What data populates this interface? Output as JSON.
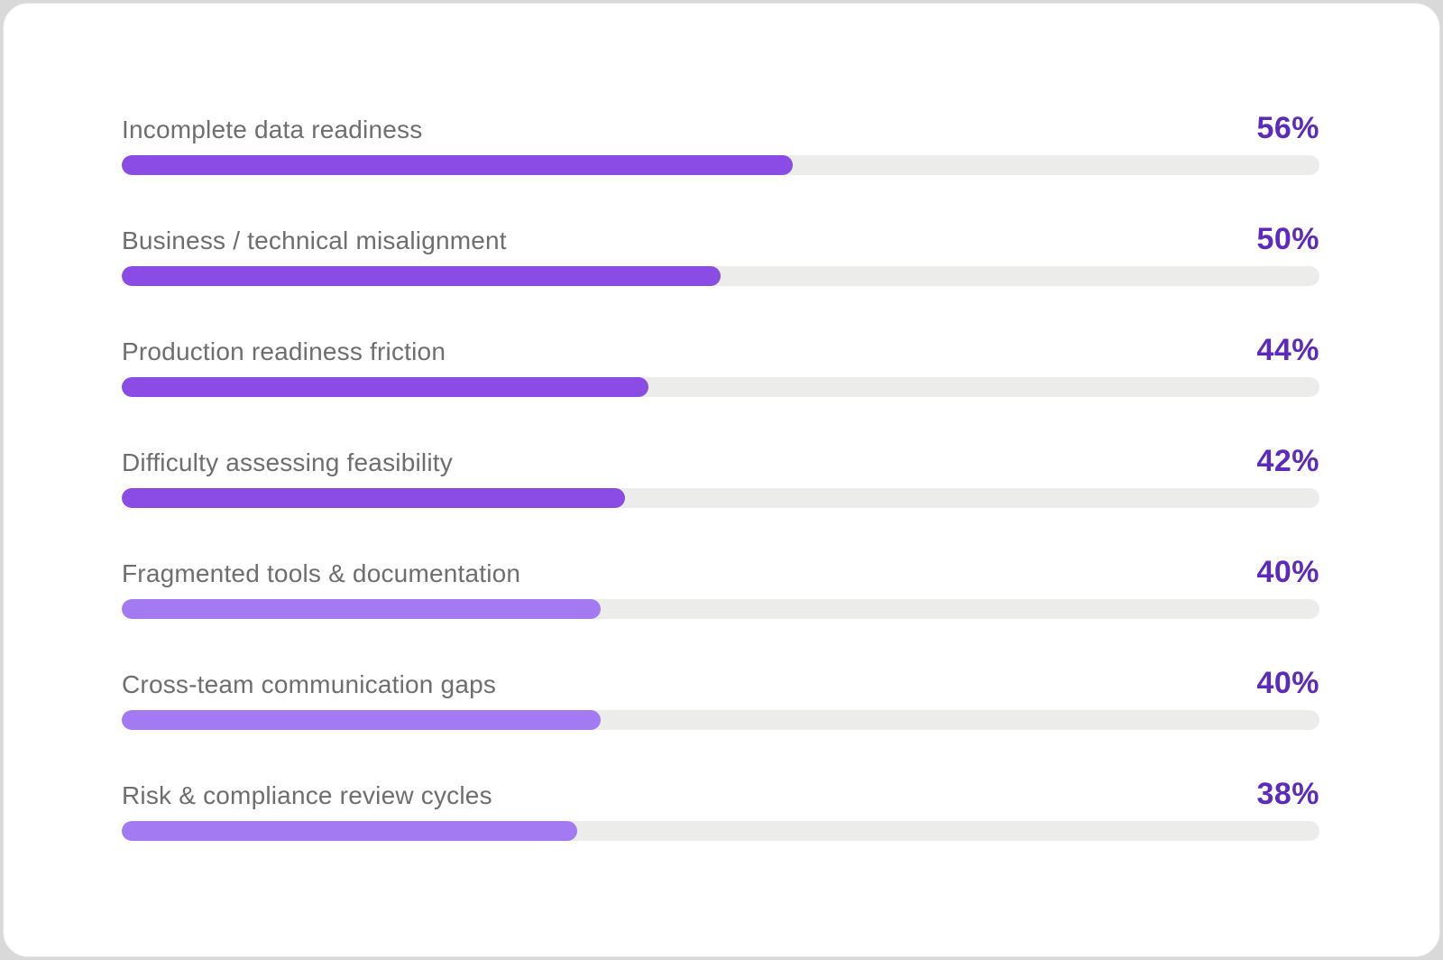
{
  "page": {
    "background": "#d9d9d9",
    "card_background": "#ffffff",
    "card_border": "#e2e2e2"
  },
  "colors": {
    "label_text": "#6e6e6e",
    "value_text": "#5c2bbd",
    "track": "#ececea",
    "fill_strong": "#8a4ce4",
    "fill_light": "#a47af2"
  },
  "chart_data": {
    "type": "bar",
    "orientation": "horizontal",
    "title": "",
    "xlabel": "",
    "ylabel": "",
    "xlim": [
      0,
      100
    ],
    "unit": "%",
    "grid": false,
    "legend": "none",
    "categories": [
      "Incomplete data readiness",
      "Business / technical misalignment",
      "Production readiness friction",
      "Difficulty assessing feasibility",
      "Fragmented tools & documentation",
      "Cross-team communication gaps",
      "Risk & compliance review cycles"
    ],
    "values": [
      56,
      50,
      44,
      42,
      40,
      40,
      38
    ],
    "value_labels": [
      "56%",
      "50%",
      "44%",
      "42%",
      "40%",
      "40%",
      "38%"
    ],
    "bar_color_keys": [
      "fill_strong",
      "fill_strong",
      "fill_strong",
      "fill_strong",
      "fill_light",
      "fill_light",
      "fill_light"
    ]
  }
}
